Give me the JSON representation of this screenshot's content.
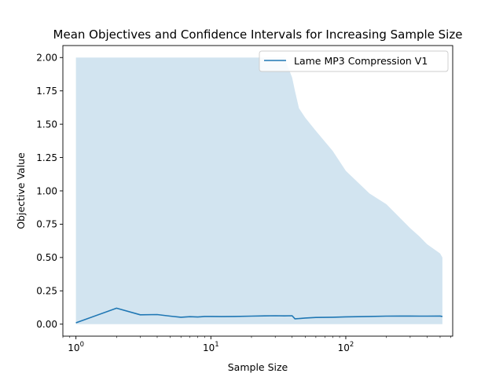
{
  "chart_data": {
    "type": "line",
    "title": "Mean Objectives and Confidence Intervals for Increasing Sample Size",
    "xlabel": "Sample Size",
    "ylabel": "Objective Value",
    "x_scale": "log",
    "xlim": [
      0.8,
      620
    ],
    "ylim": [
      -0.09,
      2.09
    ],
    "x_ticks": [
      {
        "value": 1,
        "base": "10",
        "exp": "0"
      },
      {
        "value": 10,
        "base": "10",
        "exp": "1"
      },
      {
        "value": 100,
        "base": "10",
        "exp": "2"
      }
    ],
    "y_ticks": [
      "0.00",
      "0.25",
      "0.50",
      "0.75",
      "1.00",
      "1.25",
      "1.50",
      "1.75",
      "2.00"
    ],
    "legend": {
      "placement": "upper right"
    },
    "grid": false,
    "colors": {
      "line": "#1f77b4",
      "band": "#1f77b4"
    },
    "series": [
      {
        "name": "Lame MP3 Compression V1",
        "x": [
          1,
          2,
          3,
          4,
          5,
          6,
          7,
          8,
          9,
          10,
          12,
          15,
          20,
          25,
          30,
          35,
          40,
          42,
          45,
          50,
          60,
          80,
          100,
          150,
          200,
          300,
          350,
          400,
          500,
          520
        ],
        "mean": [
          0.01,
          0.12,
          0.07,
          0.072,
          0.06,
          0.052,
          0.056,
          0.054,
          0.058,
          0.058,
          0.057,
          0.058,
          0.06,
          0.062,
          0.063,
          0.062,
          0.063,
          0.04,
          0.042,
          0.046,
          0.05,
          0.052,
          0.055,
          0.058,
          0.06,
          0.061,
          0.06,
          0.06,
          0.061,
          0.058
        ],
        "lower": [
          0.0,
          0.0,
          0.0,
          0.0,
          0.0,
          0.0,
          0.0,
          0.0,
          0.0,
          0.0,
          0.0,
          0.0,
          0.0,
          0.0,
          0.0,
          0.0,
          0.0,
          0.0,
          0.0,
          0.0,
          0.0,
          0.0,
          0.0,
          0.0,
          0.0,
          0.0,
          0.0,
          0.0,
          0.0,
          0.0
        ],
        "upper": [
          2.0,
          2.0,
          2.0,
          2.0,
          2.0,
          2.0,
          2.0,
          2.0,
          2.0,
          2.0,
          2.0,
          2.0,
          2.0,
          2.0,
          2.0,
          2.0,
          1.85,
          1.75,
          1.62,
          1.55,
          1.45,
          1.3,
          1.15,
          0.98,
          0.9,
          0.72,
          0.66,
          0.6,
          0.53,
          0.5
        ]
      }
    ]
  }
}
